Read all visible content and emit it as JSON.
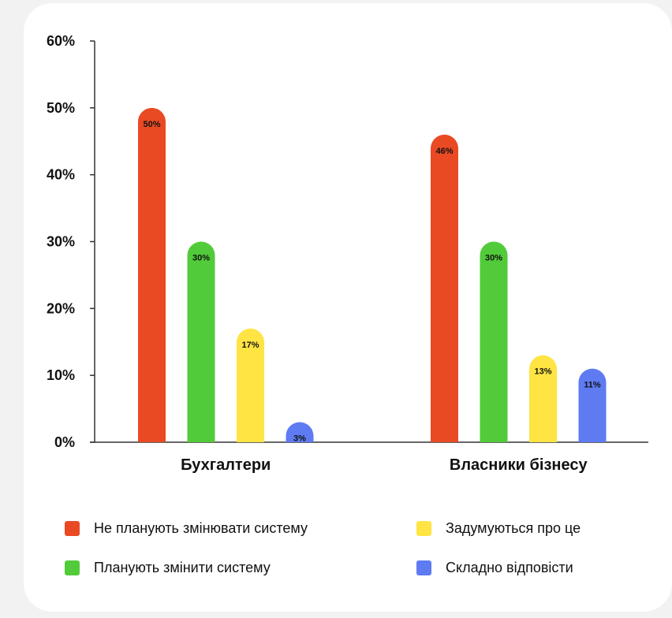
{
  "chart_data": {
    "type": "bar",
    "categories": [
      "Бухгалтери",
      "Власники бізнесу"
    ],
    "series": [
      {
        "name": "Не планують змінювати систему",
        "color": "#E94A24",
        "values": [
          50,
          46
        ],
        "labels": [
          "50%",
          "46%"
        ]
      },
      {
        "name": "Планують змінити систему",
        "color": "#52CB3A",
        "values": [
          30,
          30
        ],
        "labels": [
          "30%",
          "30%"
        ]
      },
      {
        "name": "Задумуються про це",
        "color": "#FFE443",
        "values": [
          17,
          13
        ],
        "labels": [
          "17%",
          "13%"
        ]
      },
      {
        "name": "Складно відповісти",
        "color": "#5E7BF2",
        "values": [
          3,
          11
        ],
        "labels": [
          "3%",
          "11%"
        ]
      }
    ],
    "ylim": [
      0,
      60
    ],
    "yticks": [
      0,
      10,
      20,
      30,
      40,
      50,
      60
    ],
    "ytick_labels": [
      "0%",
      "10%",
      "20%",
      "30%",
      "40%",
      "50%",
      "60%"
    ],
    "grid": false,
    "legend_position": "bottom"
  }
}
